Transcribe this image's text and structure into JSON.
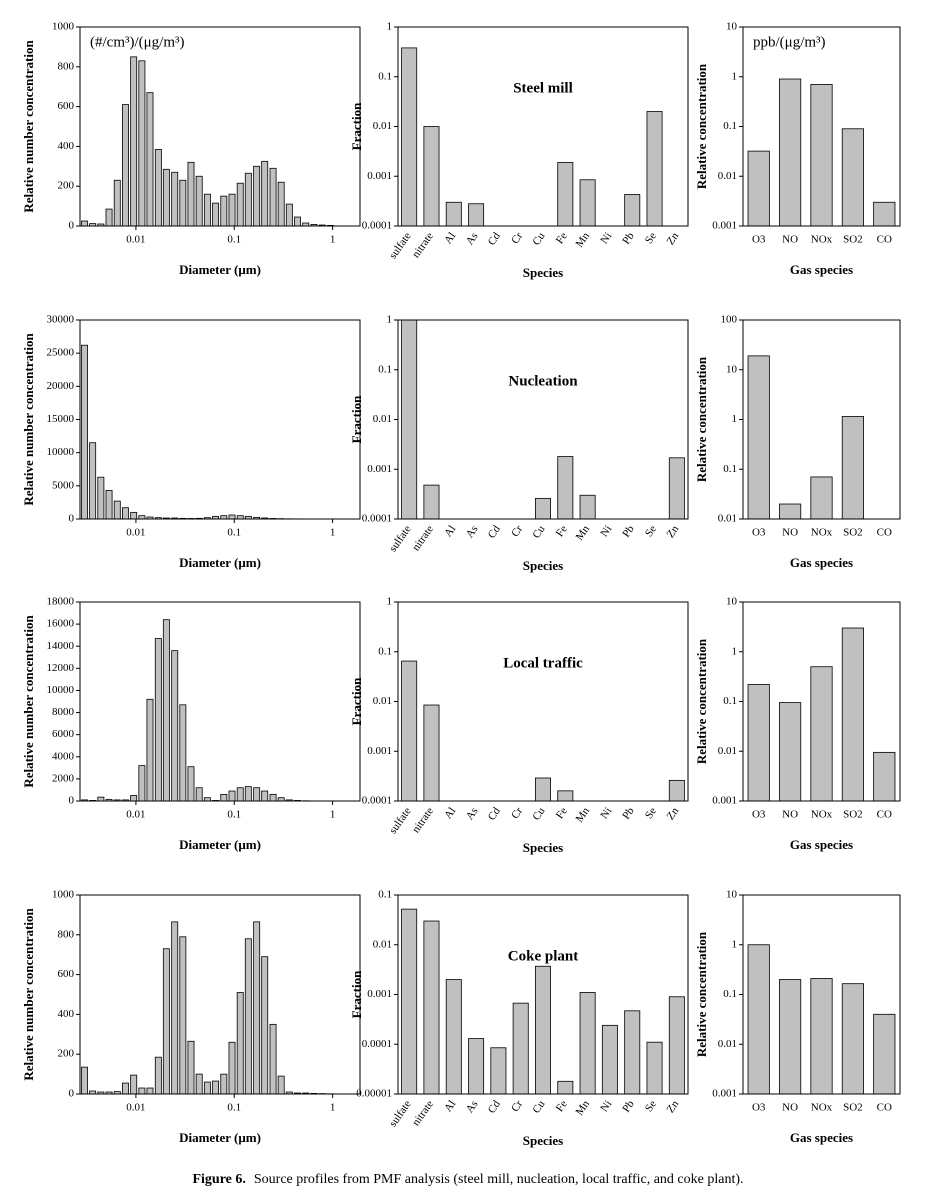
{
  "chart_data": [
    {
      "type": "bar",
      "annotation": "(#/cm³)/(μg/m³)",
      "xlabel": "Diameter (μm)",
      "ylabel": "Relative number concentration",
      "color": "#c0c0c0",
      "xlog": true,
      "xlim": [
        0.0027,
        1.9
      ],
      "xticks": [
        0.01,
        0.1,
        1
      ],
      "ylim": [
        0,
        1000
      ],
      "yticks": [
        0,
        200,
        400,
        600,
        800,
        1000
      ],
      "x": [
        0.003,
        0.00363,
        0.0044,
        0.00533,
        0.00646,
        0.00783,
        0.00949,
        0.0115,
        0.0139,
        0.0169,
        0.0204,
        0.0248,
        0.03,
        0.0363,
        0.044,
        0.0533,
        0.0646,
        0.0783,
        0.0949,
        0.115,
        0.139,
        0.169,
        0.204,
        0.248,
        0.3,
        0.363,
        0.44,
        0.533,
        0.646,
        0.783,
        0.949
      ],
      "values": [
        25,
        12,
        10,
        85,
        230,
        610,
        850,
        830,
        670,
        385,
        285,
        270,
        230,
        320,
        250,
        160,
        115,
        150,
        160,
        215,
        265,
        300,
        325,
        290,
        220,
        110,
        45,
        15,
        8,
        5,
        3
      ]
    },
    {
      "type": "bar",
      "annotation": "Steel mill",
      "xlabel": "Species",
      "ylabel": "Fraction",
      "color": "#c0c0c0",
      "ylog": true,
      "ylim": [
        0.0001,
        1
      ],
      "yticks": [
        0.0001,
        0.001,
        0.01,
        0.1,
        1
      ],
      "categories": [
        "sulfate",
        "nitrate",
        "Al",
        "As",
        "Cd",
        "Cr",
        "Cu",
        "Fe",
        "Mn",
        "Ni",
        "Pb",
        "Se",
        "Zn"
      ],
      "values": [
        0.38,
        0.01,
        0.0003,
        0.00028,
        null,
        null,
        null,
        0.0019,
        0.00085,
        null,
        0.00043,
        0.02,
        null
      ]
    },
    {
      "type": "bar",
      "annotation": "ppb/(μg/m³)",
      "xlabel": "Gas species",
      "ylabel": "Relative concentration",
      "color": "#c0c0c0",
      "ylog": true,
      "ylim": [
        0.001,
        10
      ],
      "yticks": [
        0.001,
        0.01,
        0.1,
        1,
        10
      ],
      "categories": [
        "O3",
        "NO",
        "NOx",
        "SO2",
        "CO"
      ],
      "values": [
        0.032,
        0.9,
        0.7,
        0.09,
        0.003
      ]
    },
    {
      "type": "bar",
      "xlabel": "Diameter (μm)",
      "ylabel": "Relative number concentration",
      "color": "#c0c0c0",
      "xlog": true,
      "xlim": [
        0.0027,
        1.9
      ],
      "xticks": [
        0.01,
        0.1,
        1
      ],
      "ylim": [
        0,
        30000
      ],
      "yticks": [
        0,
        5000,
        10000,
        15000,
        20000,
        25000,
        30000
      ],
      "x": [
        0.003,
        0.00363,
        0.0044,
        0.00533,
        0.00646,
        0.00783,
        0.00949,
        0.0115,
        0.0139,
        0.0169,
        0.0204,
        0.0248,
        0.03,
        0.0363,
        0.044,
        0.0533,
        0.0646,
        0.0783,
        0.0949,
        0.115,
        0.139,
        0.169,
        0.204,
        0.248,
        0.3,
        0.363,
        0.44,
        0.533,
        0.646,
        0.783,
        0.949
      ],
      "values": [
        26200,
        11500,
        6300,
        4300,
        2700,
        1700,
        1000,
        500,
        300,
        200,
        150,
        150,
        100,
        80,
        100,
        200,
        400,
        500,
        600,
        500,
        400,
        250,
        150,
        80,
        50,
        30,
        20,
        10,
        5,
        3,
        2
      ]
    },
    {
      "type": "bar",
      "annotation": "Nucleation",
      "xlabel": "Species",
      "ylabel": "Fraction",
      "color": "#c0c0c0",
      "ylog": true,
      "ylim": [
        0.0001,
        1
      ],
      "yticks": [
        0.0001,
        0.001,
        0.01,
        0.1,
        1
      ],
      "categories": [
        "sulfate",
        "nitrate",
        "Al",
        "As",
        "Cd",
        "Cr",
        "Cu",
        "Fe",
        "Mn",
        "Ni",
        "Pb",
        "Se",
        "Zn"
      ],
      "values": [
        1,
        0.00048,
        null,
        null,
        null,
        null,
        0.00026,
        0.0018,
        0.0003,
        null,
        null,
        null,
        0.0017
      ]
    },
    {
      "type": "bar",
      "xlabel": "Gas species",
      "ylabel": "Relative concentration",
      "color": "#c0c0c0",
      "ylog": true,
      "ylim": [
        0.01,
        100
      ],
      "yticks": [
        0.01,
        0.1,
        1,
        10,
        100
      ],
      "categories": [
        "O3",
        "NO",
        "NOx",
        "SO2",
        "CO"
      ],
      "values": [
        19,
        0.02,
        0.07,
        1.15,
        null
      ]
    },
    {
      "type": "bar",
      "xlabel": "Diameter (μm)",
      "ylabel": "Relative number concentration",
      "color": "#c0c0c0",
      "xlog": true,
      "xlim": [
        0.0027,
        1.9
      ],
      "xticks": [
        0.01,
        0.1,
        1
      ],
      "ylim": [
        0,
        18000
      ],
      "yticks": [
        0,
        2000,
        4000,
        6000,
        8000,
        10000,
        12000,
        14000,
        16000,
        18000
      ],
      "x": [
        0.003,
        0.00363,
        0.0044,
        0.00533,
        0.00646,
        0.00783,
        0.00949,
        0.0115,
        0.0139,
        0.0169,
        0.0204,
        0.0248,
        0.03,
        0.0363,
        0.044,
        0.0533,
        0.0646,
        0.0783,
        0.0949,
        0.115,
        0.139,
        0.169,
        0.204,
        0.248,
        0.3,
        0.363,
        0.44,
        0.533,
        0.646,
        0.783,
        0.949
      ],
      "values": [
        100,
        50,
        350,
        150,
        100,
        100,
        500,
        3200,
        9200,
        14700,
        16400,
        13600,
        8700,
        3100,
        1200,
        300,
        50,
        600,
        900,
        1200,
        1300,
        1200,
        900,
        600,
        300,
        100,
        50,
        20,
        10,
        5,
        0
      ]
    },
    {
      "type": "bar",
      "annotation": "Local traffic",
      "xlabel": "Species",
      "ylabel": "Fraction",
      "color": "#c0c0c0",
      "ylog": true,
      "ylim": [
        0.0001,
        1
      ],
      "yticks": [
        0.0001,
        0.001,
        0.01,
        0.1,
        1
      ],
      "categories": [
        "sulfate",
        "nitrate",
        "Al",
        "As",
        "Cd",
        "Cr",
        "Cu",
        "Fe",
        "Mn",
        "Ni",
        "Pb",
        "Se",
        "Zn"
      ],
      "values": [
        0.065,
        0.0085,
        null,
        null,
        null,
        null,
        0.00029,
        0.00016,
        null,
        null,
        null,
        null,
        0.00026
      ]
    },
    {
      "type": "bar",
      "xlabel": "Gas species",
      "ylabel": "Relative concentration",
      "color": "#c0c0c0",
      "ylog": true,
      "ylim": [
        0.001,
        10
      ],
      "yticks": [
        0.001,
        0.01,
        0.1,
        1,
        10
      ],
      "categories": [
        "O3",
        "NO",
        "NOx",
        "SO2",
        "CO"
      ],
      "values": [
        0.22,
        0.095,
        0.5,
        3,
        0.0095
      ]
    },
    {
      "type": "bar",
      "xlabel": "Diameter (μm)",
      "ylabel": "Relative number concentration",
      "color": "#c0c0c0",
      "xlog": true,
      "xlim": [
        0.0027,
        1.9
      ],
      "xticks": [
        0.01,
        0.1,
        1
      ],
      "ylim": [
        0,
        1000
      ],
      "yticks": [
        0,
        200,
        400,
        600,
        800,
        1000
      ],
      "x": [
        0.003,
        0.00363,
        0.0044,
        0.00533,
        0.00646,
        0.00783,
        0.00949,
        0.0115,
        0.0139,
        0.0169,
        0.0204,
        0.0248,
        0.03,
        0.0363,
        0.044,
        0.0533,
        0.0646,
        0.0783,
        0.0949,
        0.115,
        0.139,
        0.169,
        0.204,
        0.248,
        0.3,
        0.363,
        0.44,
        0.533,
        0.646,
        0.783,
        0.949
      ],
      "values": [
        135,
        15,
        10,
        10,
        12,
        55,
        95,
        30,
        30,
        185,
        730,
        865,
        790,
        265,
        100,
        60,
        65,
        100,
        260,
        510,
        780,
        865,
        690,
        350,
        90,
        10,
        5,
        5,
        3,
        2,
        1
      ]
    },
    {
      "type": "bar",
      "annotation": "Coke plant",
      "xlabel": "Species",
      "ylabel": "Fraction",
      "color": "#c0c0c0",
      "ylog": true,
      "ylim": [
        1e-05,
        0.1
      ],
      "yticks": [
        1e-05,
        0.0001,
        0.001,
        0.01,
        0.1
      ],
      "categories": [
        "sulfate",
        "nitrate",
        "Al",
        "As",
        "Cd",
        "Cr",
        "Cu",
        "Fe",
        "Mn",
        "Ni",
        "Pb",
        "Se",
        "Zn"
      ],
      "values": [
        0.052,
        0.03,
        0.002,
        0.00013,
        8.5e-05,
        0.00067,
        0.0037,
        1.8e-05,
        0.0011,
        0.00024,
        0.00047,
        0.00011,
        0.0009
      ]
    },
    {
      "type": "bar",
      "xlabel": "Gas species",
      "ylabel": "Relative concentration",
      "color": "#c0c0c0",
      "ylog": true,
      "ylim": [
        0.001,
        10
      ],
      "yticks": [
        0.001,
        0.01,
        0.1,
        1,
        10
      ],
      "categories": [
        "O3",
        "NO",
        "NOx",
        "SO2",
        "CO"
      ],
      "values": [
        1,
        0.2,
        0.21,
        0.165,
        0.04
      ]
    }
  ],
  "caption": {
    "label": "Figure 6.",
    "text": "Source profiles from PMF analysis (steel mill, nucleation, local traffic, and coke plant)."
  }
}
